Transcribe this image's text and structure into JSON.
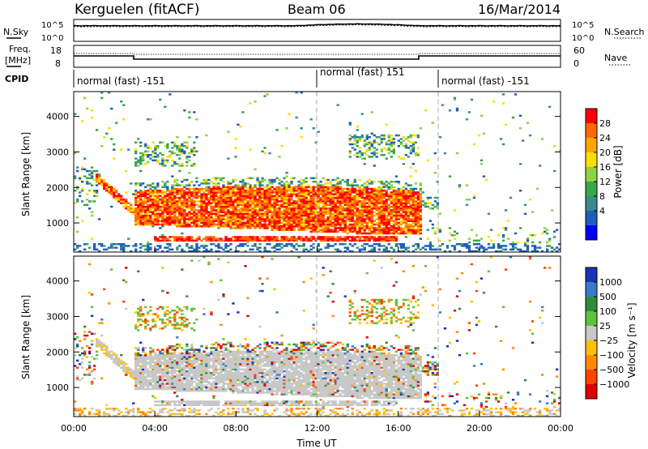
{
  "header": {
    "title": "Kerguelen (fitACF)",
    "beam": "Beam 06",
    "date": "16/Mar/2014"
  },
  "panels": {
    "nsky": {
      "label": "N.Sky",
      "left_ticks": [
        "10^5",
        "10^0"
      ],
      "right_ticks": [
        "10^5",
        "10^0"
      ],
      "right_label": "N.Search"
    },
    "freq": {
      "label_line1": "Freq.",
      "label_line2": "[MHz]",
      "left_ticks": [
        "18",
        "8"
      ],
      "right_ticks": [
        "60",
        "0"
      ],
      "right_label": "Nave"
    },
    "cpid": {
      "label": "CPID",
      "segments": [
        {
          "text": "normal (fast) -151",
          "start_h": 0
        },
        {
          "text": "normal (fast) 151",
          "start_h": 12
        },
        {
          "text": "normal (fast) -151",
          "start_h": 18
        }
      ]
    }
  },
  "chart_data": [
    {
      "type": "heatmap",
      "name": "power",
      "ylabel": "Slant Range [km]",
      "ylim": [
        180,
        4700
      ],
      "yticks": [
        "4000",
        "3000",
        "2000",
        "1000"
      ],
      "colorbar": {
        "label": "Power [dB]",
        "ticks": [
          "28",
          "24",
          "20",
          "16",
          "12",
          "8",
          "4"
        ],
        "colors": [
          "#ff0000",
          "#ff6a00",
          "#ffa500",
          "#ffdd00",
          "#8ed340",
          "#3aa64a",
          "#3a8c8c",
          "#1e5fbe",
          "#0000ff"
        ]
      },
      "xgrid_hours": [
        12,
        18
      ]
    },
    {
      "type": "heatmap",
      "name": "velocity",
      "ylabel": "Slant Range [km]",
      "ylim": [
        180,
        4700
      ],
      "yticks": [
        "4000",
        "3000",
        "2000",
        "1000"
      ],
      "colorbar": {
        "label": "Velocity [m s⁻¹]",
        "ticks": [
          "1000",
          "500",
          "100",
          "25",
          "−25",
          "−100",
          "−500",
          "−1000"
        ],
        "colors": [
          "#1a33b8",
          "#3a7acb",
          "#2e8b3a",
          "#5fc23c",
          "#c8c8c8",
          "#ffc000",
          "#ff8c00",
          "#ff4400",
          "#e00000"
        ]
      },
      "xgrid_hours": [
        12,
        18
      ]
    }
  ],
  "xaxis": {
    "label": "Time UT",
    "range_hours": [
      0,
      24
    ],
    "ticks": [
      "00:00",
      "04:00",
      "08:00",
      "12:00",
      "16:00",
      "20:00",
      "00:00"
    ]
  }
}
